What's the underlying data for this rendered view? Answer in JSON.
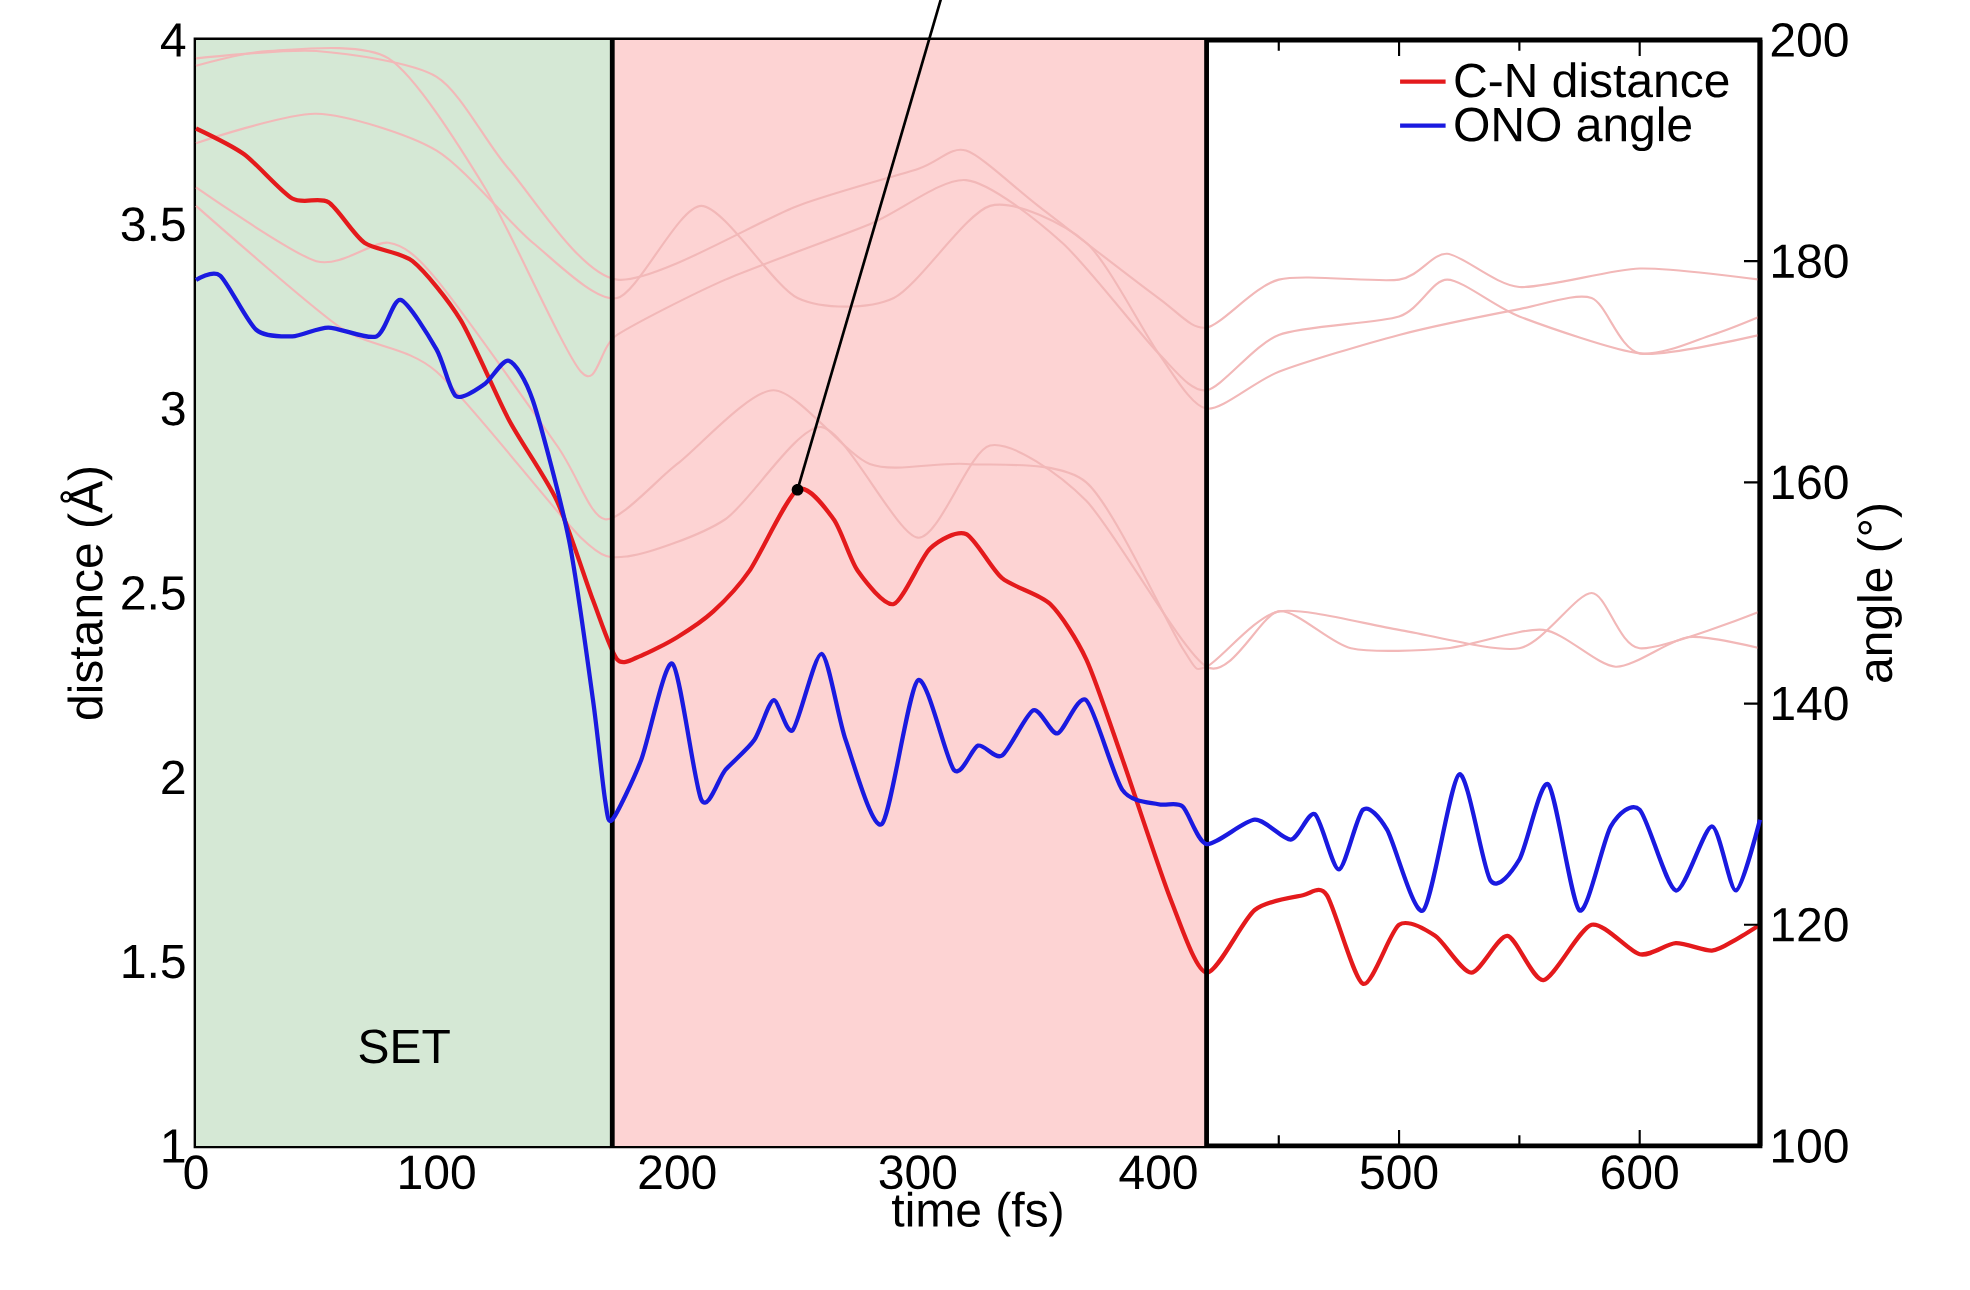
{
  "chart_data": {
    "type": "line",
    "xlabel": "time (fs)",
    "ylabel": "distance (Å)",
    "y2label": "angle (°)",
    "xlim": [
      0,
      650
    ],
    "xticks": [
      0,
      100,
      200,
      300,
      400,
      500,
      600
    ],
    "ylim": [
      1,
      4
    ],
    "yticks": [
      1,
      1.5,
      2,
      2.5,
      3,
      3.5,
      4
    ],
    "y2lim": [
      100,
      200
    ],
    "y2ticks": [
      100,
      120,
      140,
      160,
      180,
      200
    ],
    "legend": "top right",
    "annotations": [
      "SET"
    ],
    "bands": [
      {
        "axis": "x",
        "from": 0,
        "to": 173,
        "color": "#d5e8d5"
      },
      {
        "axis": "x",
        "from": 173,
        "to": 420,
        "color": "#fdd3d3"
      }
    ],
    "ref_lines": [
      {
        "axis": "x",
        "value": 173,
        "color": "#000000"
      },
      {
        "axis": "x",
        "value": 420,
        "color": "#000000"
      }
    ],
    "series": [
      {
        "color": "#f2b8b8",
        "x": [
          0,
          50,
          100,
          130,
          175,
          250,
          300,
          320,
          350,
          400,
          420,
          450,
          500,
          520,
          550,
          600,
          650
        ],
        "values": [
          3.95,
          3.97,
          3.9,
          3.65,
          3.35,
          3.55,
          3.65,
          3.7,
          3.55,
          3.3,
          3.22,
          3.35,
          3.35,
          3.42,
          3.33,
          3.38,
          3.35
        ]
      },
      {
        "color": "#f2b8b8",
        "x": [
          0,
          30,
          80,
          120,
          160,
          175,
          220,
          280,
          320,
          360,
          400,
          420,
          450,
          500,
          520,
          550,
          600,
          630,
          650
        ],
        "values": [
          3.93,
          3.97,
          3.95,
          3.6,
          3.1,
          3.2,
          3.35,
          3.5,
          3.62,
          3.45,
          3.15,
          3.05,
          3.2,
          3.25,
          3.35,
          3.25,
          3.15,
          3.2,
          3.25
        ]
      },
      {
        "color": "#f2b8b8",
        "x": [
          0,
          50,
          100,
          140,
          175,
          210,
          250,
          290,
          330,
          370,
          400,
          420,
          450,
          500,
          550,
          580,
          600,
          650
        ],
        "values": [
          3.72,
          3.8,
          3.7,
          3.45,
          3.3,
          3.55,
          3.3,
          3.3,
          3.55,
          3.45,
          3.15,
          3.0,
          3.1,
          3.2,
          3.27,
          3.3,
          3.15,
          3.2
        ]
      },
      {
        "color": "#f2b8b8",
        "x": [
          0,
          50,
          80,
          100,
          150,
          170,
          200,
          240,
          280,
          320,
          370,
          410,
          420,
          450,
          500,
          550,
          580,
          600,
          650
        ],
        "values": [
          3.6,
          3.4,
          3.45,
          3.35,
          2.9,
          2.7,
          2.85,
          3.05,
          2.85,
          2.85,
          2.8,
          2.35,
          2.3,
          2.45,
          2.4,
          2.35,
          2.5,
          2.35,
          2.45
        ]
      },
      {
        "color": "#f2b8b8",
        "x": [
          0,
          60,
          100,
          160,
          180,
          220,
          260,
          300,
          330,
          370,
          420,
          450,
          480,
          520,
          560,
          590,
          620,
          650
        ],
        "values": [
          3.55,
          3.22,
          3.1,
          2.65,
          2.6,
          2.7,
          2.95,
          2.65,
          2.9,
          2.75,
          2.3,
          2.45,
          2.35,
          2.35,
          2.4,
          2.3,
          2.38,
          2.35
        ]
      },
      {
        "name": "C-N distance",
        "color": "#e41a1c",
        "x": [
          0,
          20,
          40,
          55,
          70,
          90,
          110,
          130,
          150,
          165,
          175,
          185,
          200,
          215,
          230,
          250,
          265,
          275,
          290,
          305,
          320,
          335,
          355,
          370,
          385,
          405,
          420,
          440,
          460,
          470,
          485,
          500,
          515,
          530,
          545,
          560,
          580,
          600,
          615,
          630,
          640,
          650
        ],
        "values": [
          3.76,
          3.69,
          3.57,
          3.56,
          3.45,
          3.4,
          3.24,
          2.97,
          2.75,
          2.48,
          2.32,
          2.33,
          2.38,
          2.45,
          2.56,
          2.78,
          2.7,
          2.56,
          2.47,
          2.62,
          2.66,
          2.54,
          2.47,
          2.32,
          2.05,
          1.67,
          1.47,
          1.64,
          1.68,
          1.68,
          1.44,
          1.6,
          1.57,
          1.47,
          1.57,
          1.45,
          1.6,
          1.52,
          1.55,
          1.53,
          1.56,
          1.6
        ]
      },
      {
        "name": "ONO angle",
        "color": "#1a1ae0",
        "axis": "y2",
        "x": [
          0,
          10,
          25,
          40,
          55,
          75,
          85,
          100,
          108,
          120,
          130,
          140,
          155,
          165,
          170,
          173,
          185,
          198,
          210,
          220,
          232,
          240,
          248,
          260,
          270,
          285,
          300,
          315,
          325,
          335,
          348,
          358,
          370,
          385,
          400,
          410,
          420,
          440,
          455,
          465,
          475,
          485,
          495,
          510,
          525,
          538,
          550,
          562,
          575,
          588,
          600,
          615,
          630,
          640,
          650
        ],
        "values": [
          178.3,
          178.7,
          173.8,
          173.2,
          174,
          173.2,
          176.5,
          172,
          167.8,
          168.9,
          171,
          167.4,
          154.8,
          140.3,
          131.3,
          129.5,
          134.9,
          143.6,
          131.3,
          134,
          136.7,
          140.3,
          137.6,
          144.5,
          136.7,
          129.1,
          142.1,
          134,
          136.2,
          135.3,
          139.4,
          137.3,
          140.3,
          132.2,
          130.9,
          130.7,
          127.3,
          129.5,
          127.7,
          130,
          125,
          130.4,
          128.6,
          121.3,
          133.6,
          124,
          125.9,
          132.7,
          121.3,
          128.9,
          130.4,
          123.1,
          128.9,
          123.1,
          129.5
        ]
      }
    ]
  }
}
